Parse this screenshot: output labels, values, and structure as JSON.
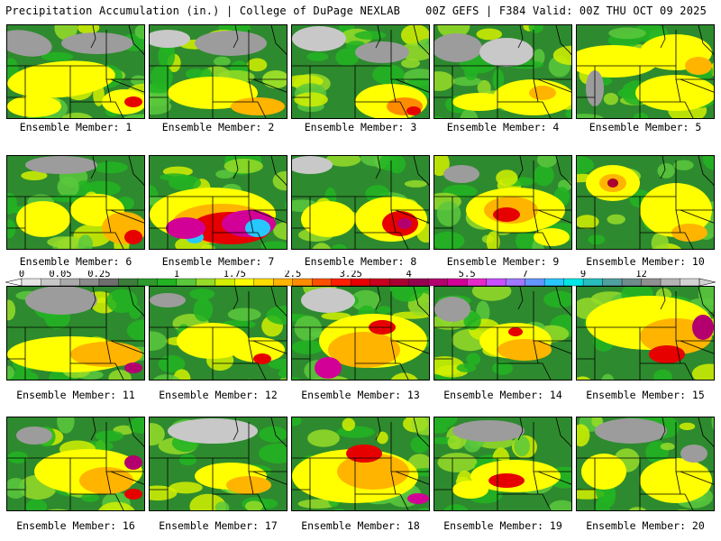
{
  "header": {
    "title": "Precipitation Accumulation (in.) | College of DuPage NEXLAB",
    "run_info": "00Z GEFS | F384 Valid: 00Z THU OCT 09 2025"
  },
  "members": [
    {
      "label": "Ensemble Member: 1"
    },
    {
      "label": "Ensemble Member: 2"
    },
    {
      "label": "Ensemble Member: 3"
    },
    {
      "label": "Ensemble Member: 4"
    },
    {
      "label": "Ensemble Member: 5"
    },
    {
      "label": "Ensemble Member: 6"
    },
    {
      "label": "Ensemble Member: 7"
    },
    {
      "label": "Ensemble Member: 8"
    },
    {
      "label": "Ensemble Member: 9"
    },
    {
      "label": "Ensemble Member: 10"
    },
    {
      "label": "Ensemble Member: 11"
    },
    {
      "label": "Ensemble Member: 12"
    },
    {
      "label": "Ensemble Member: 13"
    },
    {
      "label": "Ensemble Member: 14"
    },
    {
      "label": "Ensemble Member: 15"
    },
    {
      "label": "Ensemble Member: 16"
    },
    {
      "label": "Ensemble Member: 17"
    },
    {
      "label": "Ensemble Member: 18"
    },
    {
      "label": "Ensemble Member: 19"
    },
    {
      "label": "Ensemble Member: 20"
    }
  ],
  "colorbar": {
    "tick_labels": [
      "0",
      "0.05",
      "0.25",
      "1",
      "1.75",
      "2.5",
      "3.25",
      "4",
      "5.5",
      "7",
      "9",
      "12"
    ],
    "colors": [
      "#e6e6e6",
      "#c8c8c8",
      "#aaaaaa",
      "#8c8c8c",
      "#6e6e6e",
      "#3c7d3c",
      "#2e9a2e",
      "#22b422",
      "#5ac83c",
      "#96dc28",
      "#d2f000",
      "#ffff00",
      "#ffdc00",
      "#ffb400",
      "#ff8c00",
      "#ff5000",
      "#ff1e00",
      "#e60000",
      "#c8001e",
      "#aa0032",
      "#960050",
      "#b4006e",
      "#d20096",
      "#e628c8",
      "#c850ff",
      "#a078ff",
      "#6496ff",
      "#28c8ff",
      "#00e6e6",
      "#28bebe",
      "#50a0a0",
      "#6e8c8c",
      "#909090",
      "#b4b4b4",
      "#d2d2d2"
    ]
  }
}
